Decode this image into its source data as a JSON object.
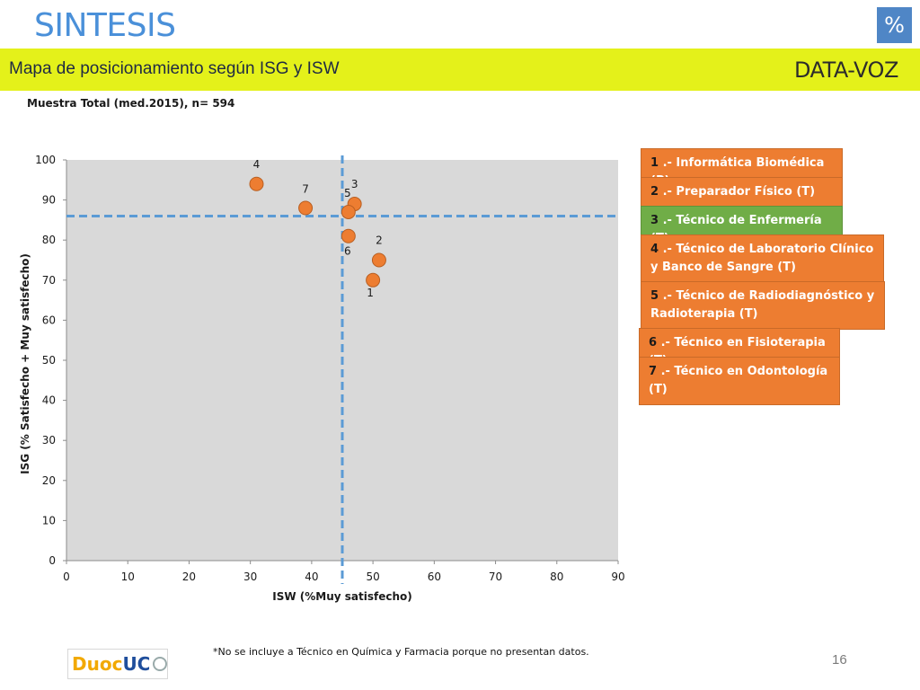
{
  "header": {
    "title": "SINTESIS",
    "badge": "%"
  },
  "banner": {
    "text": "Mapa de posicionamiento según ISG y ISW",
    "logo_text": "DATA-VOZ"
  },
  "sample_label": "Muestra Total (med.2015), n= 594",
  "chart_data": {
    "type": "scatter",
    "xlabel": "ISW (%Muy satisfecho)",
    "ylabel": "ISG (% Satisfecho + Muy satisfecho)",
    "xlim": [
      0,
      90
    ],
    "ylim": [
      0,
      100
    ],
    "xticks": [
      0,
      10,
      20,
      30,
      40,
      50,
      60,
      70,
      80,
      90
    ],
    "yticks": [
      0,
      10,
      20,
      30,
      40,
      50,
      60,
      70,
      80,
      90,
      100
    ],
    "grid": false,
    "points": [
      {
        "label": "1",
        "x": 50,
        "y": 70
      },
      {
        "label": "2",
        "x": 51,
        "y": 75
      },
      {
        "label": "3",
        "x": 47,
        "y": 89
      },
      {
        "label": "4",
        "x": 31,
        "y": 94
      },
      {
        "label": "5",
        "x": 46,
        "y": 87
      },
      {
        "label": "6",
        "x": 46,
        "y": 81
      },
      {
        "label": "7",
        "x": 39,
        "y": 88
      }
    ],
    "reference_lines": {
      "x": 45,
      "y": 86
    },
    "colors": {
      "plot_bg": "#d9d9d9",
      "point": "#ed7d31",
      "point_stroke": "#b85f22",
      "ref_line": "#5b9bd5"
    }
  },
  "legend": [
    {
      "num": "1",
      "text": " .- Informática Biomédica (P)",
      "color": "orange"
    },
    {
      "num": "2",
      "text": " .- Preparador Físico (T)",
      "color": "orange"
    },
    {
      "num": "3",
      "text": " .- Técnico de Enfermería (T)",
      "color": "green"
    },
    {
      "num": "4",
      "text": " .- Técnico de Laboratorio Clínico y Banco de Sangre (T)",
      "color": "orange"
    },
    {
      "num": "5",
      "text": " .- Técnico de Radiodiagnóstico y Radioterapia (T)",
      "color": "orange"
    },
    {
      "num": "6",
      "text": " .- Técnico en Fisioterapia (T)",
      "color": "orange"
    },
    {
      "num": "7",
      "text": " .- Técnico en Odontología (T)",
      "color": "orange"
    }
  ],
  "footnote": "*No se incluye a  Técnico en Química y Farmacia porque no presentan datos.",
  "page_number": "16",
  "footer_logo": {
    "part1": "Duoc",
    "part2": "UC"
  }
}
